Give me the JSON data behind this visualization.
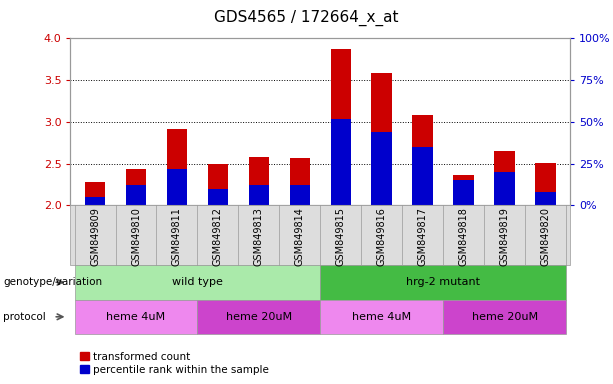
{
  "title": "GDS4565 / 172664_x_at",
  "samples": [
    "GSM849809",
    "GSM849810",
    "GSM849811",
    "GSM849812",
    "GSM849813",
    "GSM849814",
    "GSM849815",
    "GSM849816",
    "GSM849817",
    "GSM849818",
    "GSM849819",
    "GSM849820"
  ],
  "transformed_count": [
    2.28,
    2.44,
    2.92,
    2.5,
    2.58,
    2.57,
    3.87,
    3.59,
    3.08,
    2.37,
    2.65,
    2.51
  ],
  "percentile_rank_pct": [
    5,
    12,
    22,
    10,
    12,
    12,
    52,
    44,
    35,
    15,
    20,
    8
  ],
  "ylim_left": [
    2.0,
    4.0
  ],
  "ylim_right": [
    0,
    100
  ],
  "yticks_left": [
    2.0,
    2.5,
    3.0,
    3.5,
    4.0
  ],
  "yticks_right": [
    0,
    25,
    50,
    75,
    100
  ],
  "ytick_labels_right": [
    "0%",
    "25%",
    "50%",
    "75%",
    "100%"
  ],
  "bar_color_red": "#cc0000",
  "bar_color_blue": "#0000cc",
  "bar_width": 0.5,
  "genotype_groups": [
    {
      "label": "wild type",
      "start": 0,
      "end": 5,
      "color": "#aaeaaa"
    },
    {
      "label": "hrg-2 mutant",
      "start": 6,
      "end": 11,
      "color": "#44bb44"
    }
  ],
  "protocol_groups": [
    {
      "label": "heme 4uM",
      "start": 0,
      "end": 2,
      "color": "#ee88ee"
    },
    {
      "label": "heme 20uM",
      "start": 3,
      "end": 5,
      "color": "#cc44cc"
    },
    {
      "label": "heme 4uM",
      "start": 6,
      "end": 8,
      "color": "#ee88ee"
    },
    {
      "label": "heme 20uM",
      "start": 9,
      "end": 11,
      "color": "#cc44cc"
    }
  ],
  "legend_items": [
    {
      "label": "transformed count",
      "color": "#cc0000"
    },
    {
      "label": "percentile rank within the sample",
      "color": "#0000cc"
    }
  ],
  "left_tick_color": "#cc0000",
  "right_tick_color": "#0000cc",
  "grid_color": "#000000",
  "bg_color": "#ffffff",
  "title_fontsize": 11,
  "tick_fontsize": 7,
  "label_fontsize": 7.5,
  "ann_fontsize": 8
}
